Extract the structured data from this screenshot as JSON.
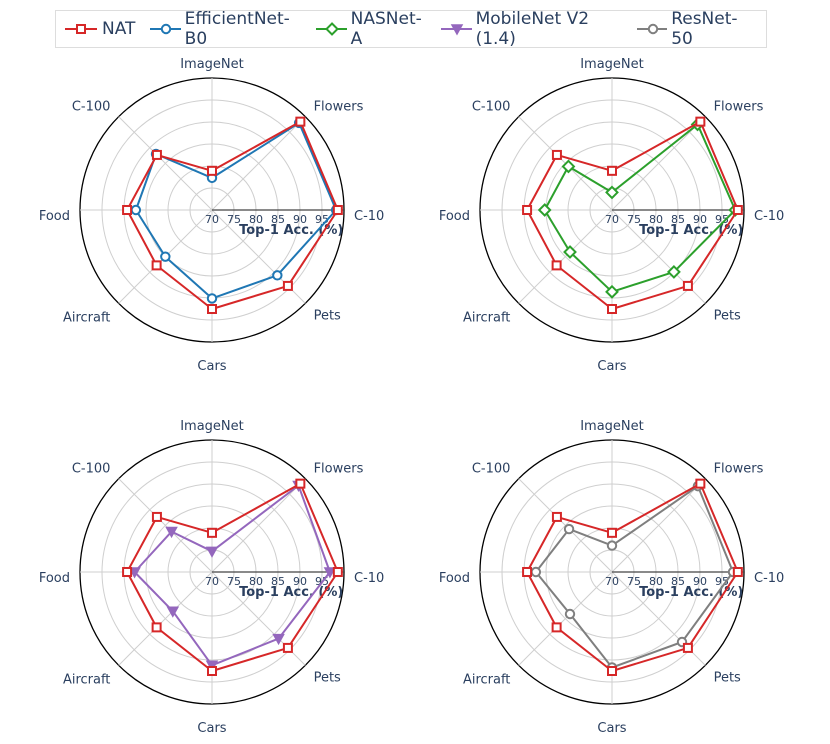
{
  "chart_data": {
    "type": "radar",
    "axes": [
      "ImageNet",
      "Flowers",
      "C-10",
      "Pets",
      "Cars",
      "Aircraft",
      "Food",
      "C-100"
    ],
    "radial_range": [
      70,
      100
    ],
    "radial_ticks": [
      "70",
      "75",
      "80",
      "85",
      "90",
      "95"
    ],
    "radial_title": "Top-1 Acc. (%)",
    "legend": [
      {
        "name": "NAT",
        "color": "#d62728",
        "marker": "square"
      },
      {
        "name": "EfficientNet-B0",
        "color": "#1f77b4",
        "marker": "circle"
      },
      {
        "name": "NASNet-A",
        "color": "#2ca02c",
        "marker": "diamond"
      },
      {
        "name": "MobileNet V2 (1.4)",
        "color": "#9467bd",
        "marker": "triangle-down"
      },
      {
        "name": "ResNet-50",
        "color": "#7f7f7f",
        "marker": "circle"
      }
    ],
    "panels": [
      {
        "series": [
          {
            "name": "NAT",
            "color": "#d62728",
            "marker": "square",
            "values": [
              78.9,
              98.4,
              98.6,
              94.4,
              92.5,
              87.8,
              89.3,
              87.7
            ]
          },
          {
            "name": "EfficientNet-B0",
            "color": "#1f77b4",
            "marker": "circle",
            "values": [
              77.3,
              98.0,
              98.2,
              91.0,
              90.1,
              85.0,
              87.3,
              88.0
            ]
          }
        ]
      },
      {
        "series": [
          {
            "name": "NAT",
            "color": "#d62728",
            "marker": "square",
            "values": [
              78.9,
              98.4,
              98.6,
              94.4,
              92.5,
              87.8,
              89.3,
              87.7
            ]
          },
          {
            "name": "NASNet-A",
            "color": "#2ca02c",
            "marker": "diamond",
            "values": [
              74.0,
              97.5,
              98.0,
              89.9,
              88.6,
              83.5,
              85.3,
              84.0
            ]
          }
        ]
      },
      {
        "series": [
          {
            "name": "NAT",
            "color": "#d62728",
            "marker": "square",
            "values": [
              78.9,
              98.4,
              98.6,
              94.4,
              92.5,
              87.8,
              89.3,
              87.7
            ]
          },
          {
            "name": "MobileNet V2 (1.4)",
            "color": "#9467bd",
            "marker": "triangle-down",
            "values": [
              74.7,
              97.8,
              96.8,
              91.4,
              91.2,
              82.6,
              87.6,
              83.0
            ]
          }
        ]
      },
      {
        "series": [
          {
            "name": "NAT",
            "color": "#d62728",
            "marker": "square",
            "values": [
              78.9,
              98.4,
              98.6,
              94.4,
              92.5,
              87.8,
              89.3,
              87.7
            ]
          },
          {
            "name": "ResNet-50",
            "color": "#7f7f7f",
            "marker": "circle",
            "values": [
              76.0,
              97.6,
              97.5,
              92.5,
              91.7,
              83.5,
              87.3,
              83.8
            ]
          }
        ]
      }
    ]
  }
}
